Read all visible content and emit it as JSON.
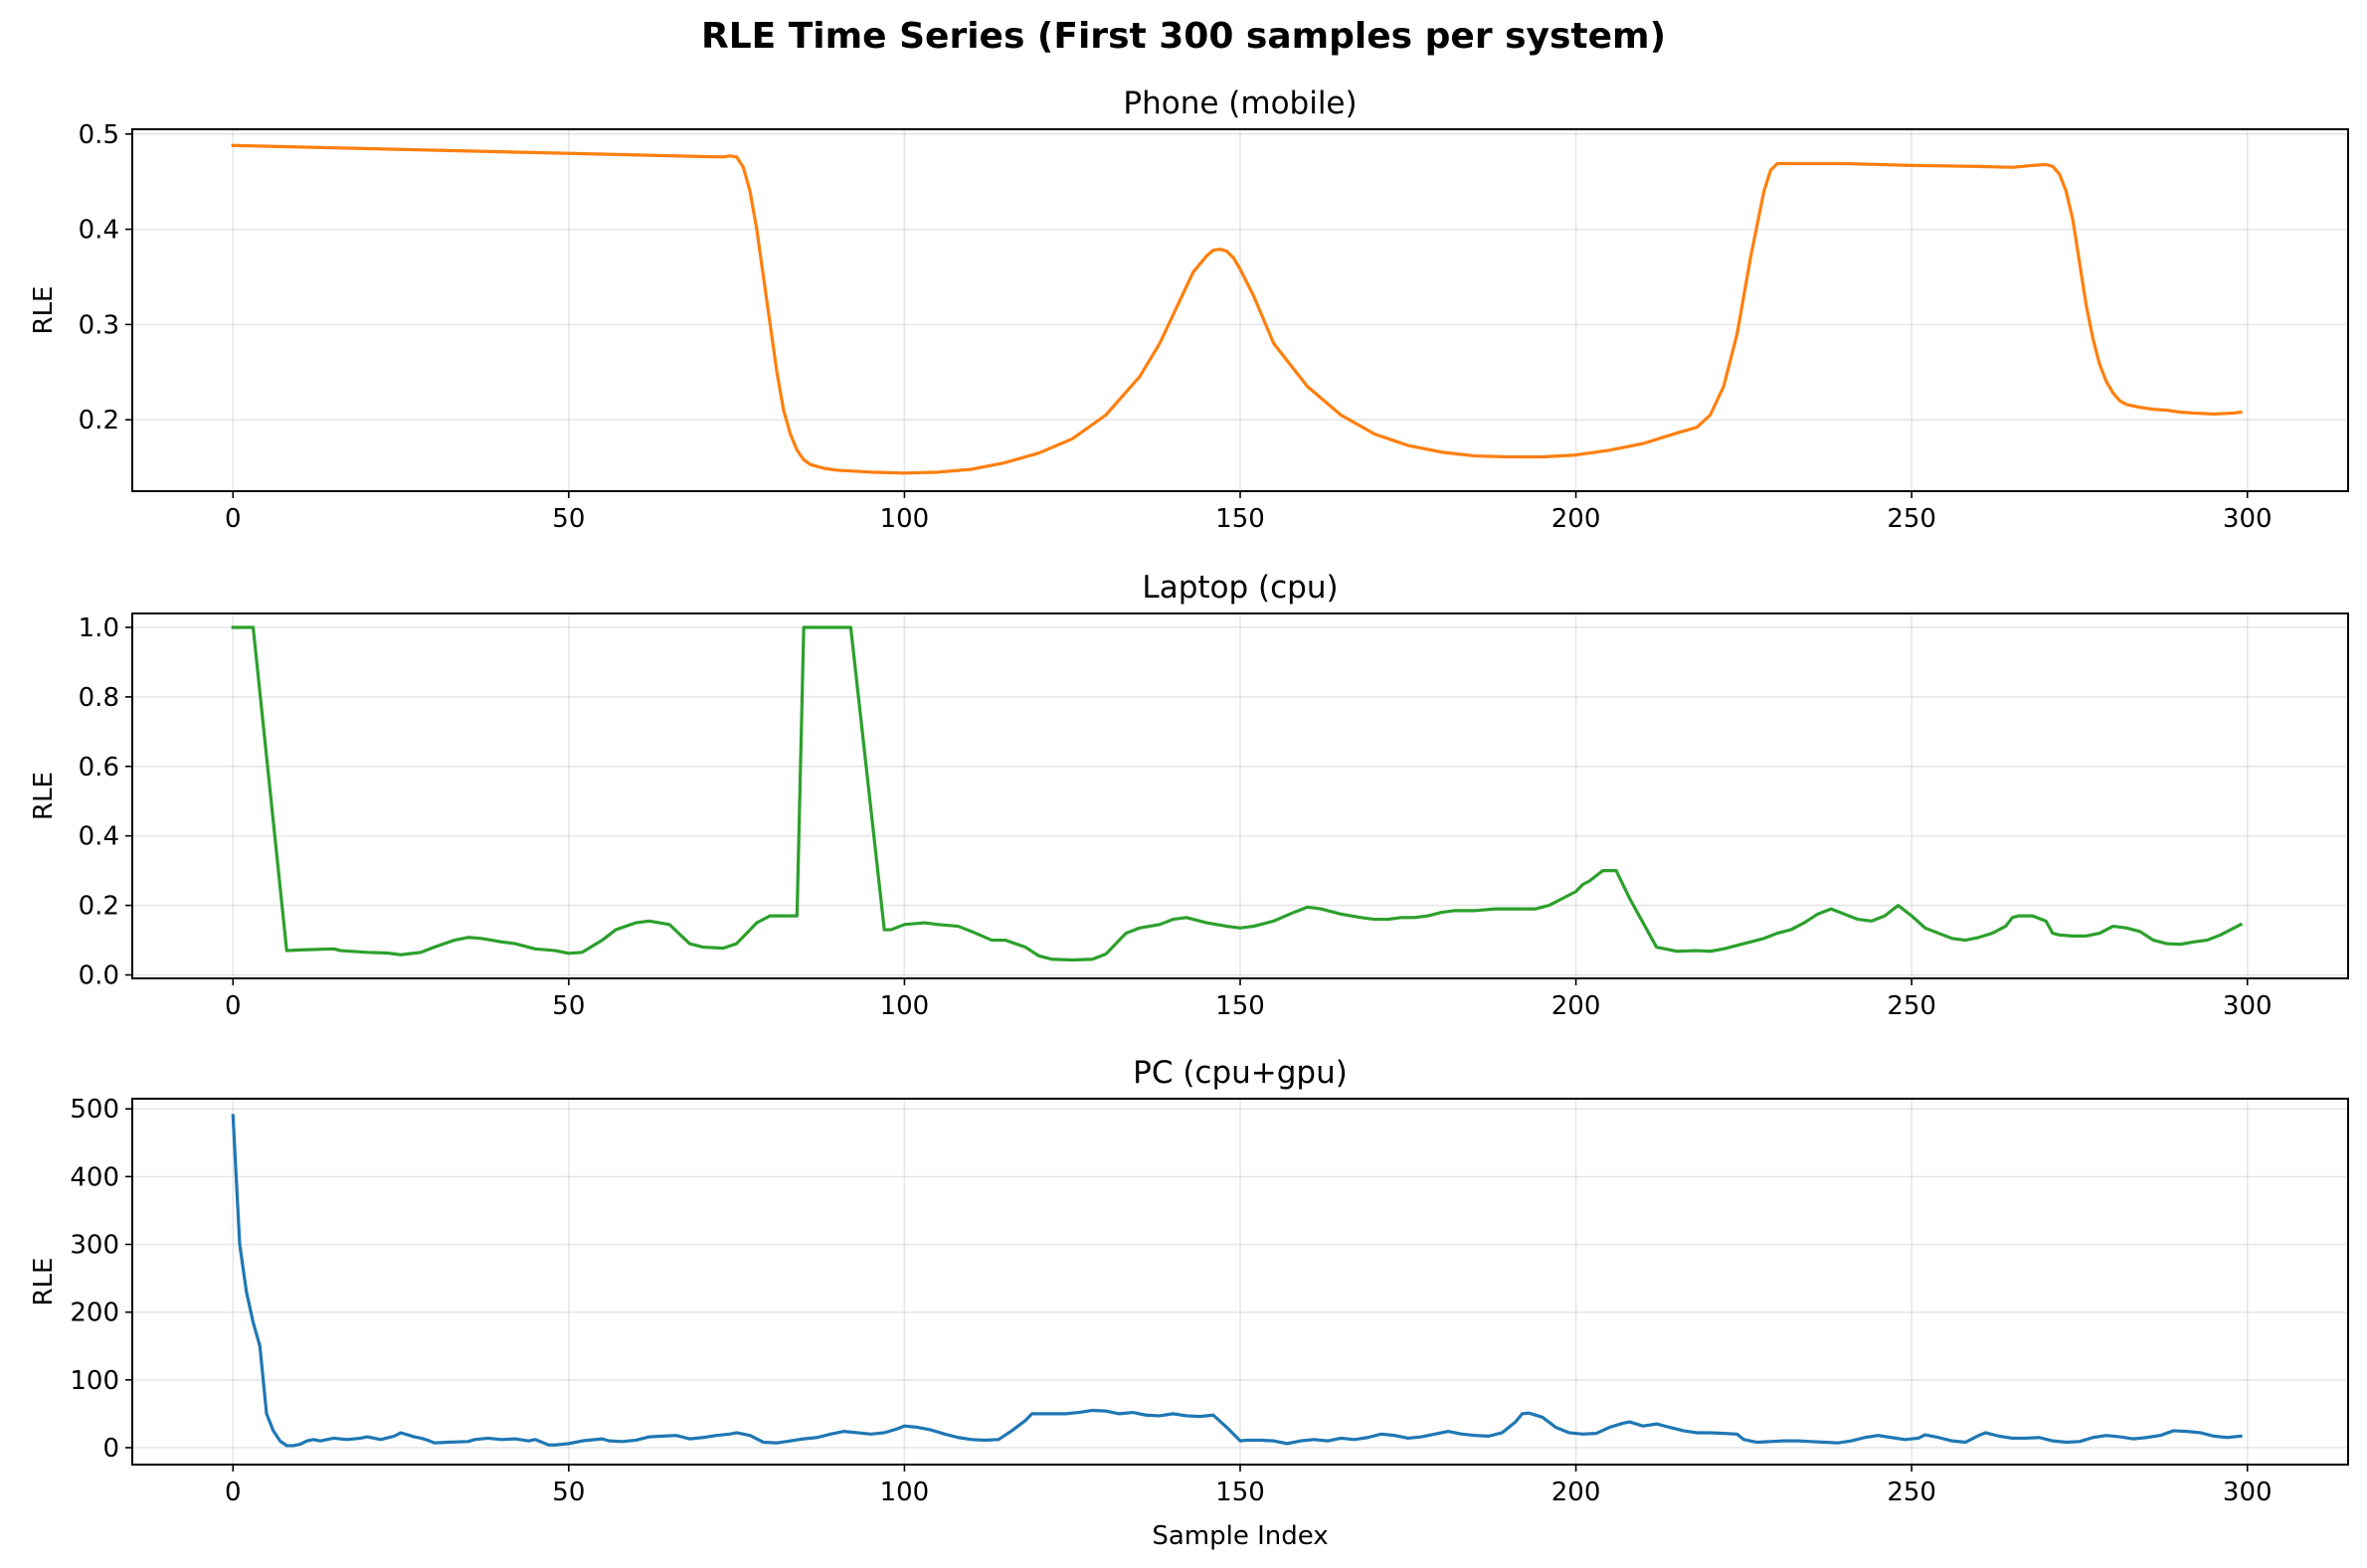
{
  "figure": {
    "title": "RLE Time Series (First 300 samples per system)"
  },
  "chart_data": [
    {
      "type": "line",
      "title": "Phone (mobile)",
      "xlabel": "",
      "ylabel": "RLE",
      "xlim": [
        -15,
        315
      ],
      "ylim": [
        0.125,
        0.505
      ],
      "xticks": [
        0,
        50,
        100,
        150,
        200,
        250,
        300
      ],
      "xtick_labels": [
        "0",
        "50",
        "100",
        "150",
        "200",
        "250",
        "300"
      ],
      "yticks": [
        0.2,
        0.3,
        0.4,
        0.5
      ],
      "ytick_labels": [
        "0.2",
        "0.3",
        "0.4",
        "0.5"
      ],
      "grid": true,
      "color": "#ff7f0e",
      "series": [
        {
          "x": [
            0,
            72,
            73,
            74,
            75,
            76,
            77,
            78,
            79,
            80,
            81,
            82,
            83,
            84,
            85,
            86,
            88,
            90,
            95,
            100,
            105,
            110,
            115,
            120,
            125,
            130,
            135,
            138,
            141,
            143,
            145,
            146,
            147,
            148,
            149,
            150,
            152,
            155,
            160,
            165,
            170,
            175,
            180,
            185,
            190,
            195,
            200,
            205,
            210,
            215,
            218,
            220,
            222,
            224,
            226,
            228,
            229,
            230,
            231,
            240,
            250,
            260,
            265,
            268,
            270,
            271,
            272,
            273,
            274,
            275,
            276,
            277,
            278,
            279,
            280,
            281,
            282,
            284,
            286,
            288,
            290,
            292,
            295,
            298,
            299
          ],
          "y": [
            0.488,
            0.476,
            0.476,
            0.477,
            0.476,
            0.465,
            0.44,
            0.4,
            0.35,
            0.3,
            0.25,
            0.21,
            0.185,
            0.168,
            0.158,
            0.153,
            0.149,
            0.147,
            0.145,
            0.144,
            0.145,
            0.148,
            0.155,
            0.165,
            0.18,
            0.205,
            0.245,
            0.28,
            0.325,
            0.355,
            0.372,
            0.378,
            0.379,
            0.377,
            0.37,
            0.358,
            0.33,
            0.28,
            0.235,
            0.205,
            0.185,
            0.173,
            0.166,
            0.162,
            0.161,
            0.161,
            0.163,
            0.168,
            0.175,
            0.186,
            0.192,
            0.205,
            0.235,
            0.29,
            0.37,
            0.44,
            0.462,
            0.469,
            0.469,
            0.469,
            0.467,
            0.466,
            0.465,
            0.467,
            0.468,
            0.466,
            0.458,
            0.44,
            0.41,
            0.365,
            0.32,
            0.285,
            0.258,
            0.24,
            0.228,
            0.22,
            0.216,
            0.213,
            0.211,
            0.21,
            0.208,
            0.207,
            0.206,
            0.207,
            0.208
          ]
        }
      ]
    },
    {
      "type": "line",
      "title": "Laptop (cpu)",
      "xlabel": "",
      "ylabel": "RLE",
      "xlim": [
        -15,
        315
      ],
      "ylim": [
        -0.01,
        1.04
      ],
      "xticks": [
        0,
        50,
        100,
        150,
        200,
        250,
        300
      ],
      "xtick_labels": [
        "0",
        "50",
        "100",
        "150",
        "200",
        "250",
        "300"
      ],
      "yticks": [
        0.0,
        0.2,
        0.4,
        0.6,
        0.8,
        1.0
      ],
      "ytick_labels": [
        "0.0",
        "0.2",
        "0.4",
        "0.6",
        "0.8",
        "1.0"
      ],
      "grid": true,
      "color": "#2ca02c",
      "series": [
        {
          "x": [
            0,
            3,
            8,
            10,
            15,
            16,
            20,
            23,
            25,
            28,
            30,
            33,
            35,
            37,
            40,
            42,
            45,
            48,
            50,
            52,
            55,
            57,
            60,
            62,
            65,
            68,
            70,
            72,
            73,
            75,
            78,
            80,
            82,
            84,
            85,
            86,
            88,
            90,
            92,
            97,
            98,
            100,
            103,
            105,
            108,
            110,
            113,
            115,
            118,
            120,
            122,
            125,
            128,
            130,
            133,
            135,
            138,
            140,
            142,
            145,
            148,
            150,
            152,
            155,
            158,
            160,
            162,
            165,
            168,
            170,
            172,
            174,
            176,
            178,
            180,
            182,
            185,
            188,
            190,
            192,
            194,
            196,
            198,
            200,
            201,
            202,
            204,
            206,
            208,
            210,
            212,
            215,
            218,
            220,
            222,
            225,
            228,
            230,
            232,
            234,
            236,
            238,
            240,
            242,
            244,
            246,
            248,
            250,
            252,
            254,
            256,
            258,
            260,
            262,
            264,
            265,
            266,
            268,
            270,
            271,
            272,
            274,
            276,
            278,
            280,
            282,
            284,
            286,
            288,
            290,
            292,
            294,
            296,
            299
          ],
          "y": [
            1.0,
            1.0,
            0.07,
            0.072,
            0.075,
            0.07,
            0.065,
            0.063,
            0.058,
            0.065,
            0.08,
            0.1,
            0.108,
            0.105,
            0.095,
            0.09,
            0.075,
            0.07,
            0.062,
            0.065,
            0.1,
            0.13,
            0.15,
            0.155,
            0.145,
            0.09,
            0.08,
            0.078,
            0.077,
            0.09,
            0.15,
            0.17,
            0.17,
            0.17,
            1.0,
            1.0,
            1.0,
            1.0,
            1.0,
            0.13,
            0.13,
            0.145,
            0.15,
            0.145,
            0.14,
            0.125,
            0.1,
            0.1,
            0.08,
            0.055,
            0.045,
            0.043,
            0.045,
            0.06,
            0.12,
            0.135,
            0.145,
            0.16,
            0.165,
            0.15,
            0.14,
            0.135,
            0.14,
            0.155,
            0.18,
            0.195,
            0.19,
            0.175,
            0.165,
            0.16,
            0.16,
            0.165,
            0.165,
            0.17,
            0.18,
            0.185,
            0.185,
            0.19,
            0.19,
            0.19,
            0.19,
            0.2,
            0.22,
            0.24,
            0.26,
            0.27,
            0.3,
            0.3,
            0.22,
            0.15,
            0.08,
            0.068,
            0.07,
            0.068,
            0.075,
            0.09,
            0.105,
            0.12,
            0.13,
            0.15,
            0.175,
            0.19,
            0.175,
            0.16,
            0.155,
            0.17,
            0.2,
            0.17,
            0.135,
            0.12,
            0.105,
            0.1,
            0.108,
            0.12,
            0.14,
            0.165,
            0.17,
            0.17,
            0.155,
            0.12,
            0.115,
            0.112,
            0.112,
            0.12,
            0.14,
            0.135,
            0.125,
            0.1,
            0.09,
            0.088,
            0.095,
            0.1,
            0.115,
            0.145
          ]
        }
      ]
    },
    {
      "type": "line",
      "title": "PC (cpu+gpu)",
      "xlabel": "Sample Index",
      "ylabel": "RLE",
      "xlim": [
        -15,
        315
      ],
      "ylim": [
        -25,
        515
      ],
      "xticks": [
        0,
        50,
        100,
        150,
        200,
        250,
        300
      ],
      "xtick_labels": [
        "0",
        "50",
        "100",
        "150",
        "200",
        "250",
        "300"
      ],
      "yticks": [
        0,
        100,
        200,
        300,
        400,
        500
      ],
      "ytick_labels": [
        "0",
        "100",
        "200",
        "300",
        "400",
        "500"
      ],
      "grid": true,
      "color": "#1f77b4",
      "series": [
        {
          "x": [
            0,
            1,
            2,
            3,
            4,
            5,
            6,
            7,
            8,
            9,
            10,
            11,
            12,
            13,
            15,
            17,
            19,
            20,
            22,
            24,
            25,
            27,
            28,
            29,
            30,
            32,
            35,
            36,
            38,
            40,
            42,
            44,
            45,
            47,
            48,
            50,
            52,
            55,
            56,
            58,
            60,
            62,
            64,
            66,
            68,
            70,
            72,
            74,
            75,
            77,
            79,
            81,
            83,
            85,
            87,
            89,
            91,
            93,
            95,
            97,
            99,
            100,
            102,
            104,
            106,
            108,
            110,
            112,
            114,
            116,
            118,
            119,
            120,
            122,
            124,
            126,
            128,
            130,
            132,
            134,
            136,
            138,
            140,
            142,
            144,
            146,
            148,
            150,
            151,
            153,
            155,
            157,
            159,
            161,
            163,
            165,
            167,
            169,
            171,
            173,
            175,
            177,
            179,
            181,
            183,
            185,
            187,
            189,
            191,
            192,
            193,
            195,
            197,
            199,
            201,
            203,
            205,
            207,
            208,
            210,
            212,
            214,
            216,
            218,
            220,
            222,
            224,
            225,
            227,
            229,
            231,
            233,
            235,
            237,
            239,
            241,
            243,
            245,
            247,
            249,
            251,
            252,
            254,
            256,
            258,
            260,
            261,
            263,
            265,
            267,
            269,
            271,
            273,
            275,
            277,
            279,
            281,
            283,
            285,
            287,
            289,
            291,
            293,
            295,
            297,
            299
          ],
          "y": [
            490,
            300,
            230,
            185,
            150,
            50,
            25,
            10,
            3,
            3,
            5,
            10,
            12,
            10,
            14,
            12,
            14,
            16,
            12,
            17,
            22,
            16,
            14,
            11,
            7,
            8,
            9,
            12,
            14,
            12,
            13,
            10,
            12,
            4,
            4,
            6,
            10,
            13,
            10,
            9,
            11,
            16,
            17,
            18,
            13,
            15,
            18,
            20,
            22,
            18,
            8,
            7,
            10,
            13,
            15,
            20,
            24,
            22,
            20,
            22,
            28,
            32,
            30,
            26,
            20,
            15,
            12,
            11,
            12,
            25,
            40,
            50,
            50,
            50,
            50,
            52,
            55,
            54,
            50,
            52,
            48,
            47,
            50,
            47,
            46,
            48,
            30,
            10,
            11,
            11,
            10,
            6,
            10,
            12,
            10,
            14,
            12,
            15,
            20,
            18,
            14,
            16,
            20,
            24,
            20,
            18,
            17,
            22,
            38,
            50,
            51,
            45,
            30,
            22,
            20,
            21,
            30,
            36,
            38,
            32,
            35,
            30,
            25,
            22,
            22,
            21,
            20,
            12,
            8,
            9,
            10,
            10,
            9,
            8,
            7,
            10,
            15,
            18,
            15,
            12,
            14,
            19,
            15,
            10,
            8,
            18,
            22,
            17,
            14,
            14,
            15,
            10,
            8,
            9,
            15,
            18,
            16,
            13,
            15,
            18,
            25,
            24,
            22,
            17,
            15,
            17
          ]
        }
      ]
    }
  ]
}
